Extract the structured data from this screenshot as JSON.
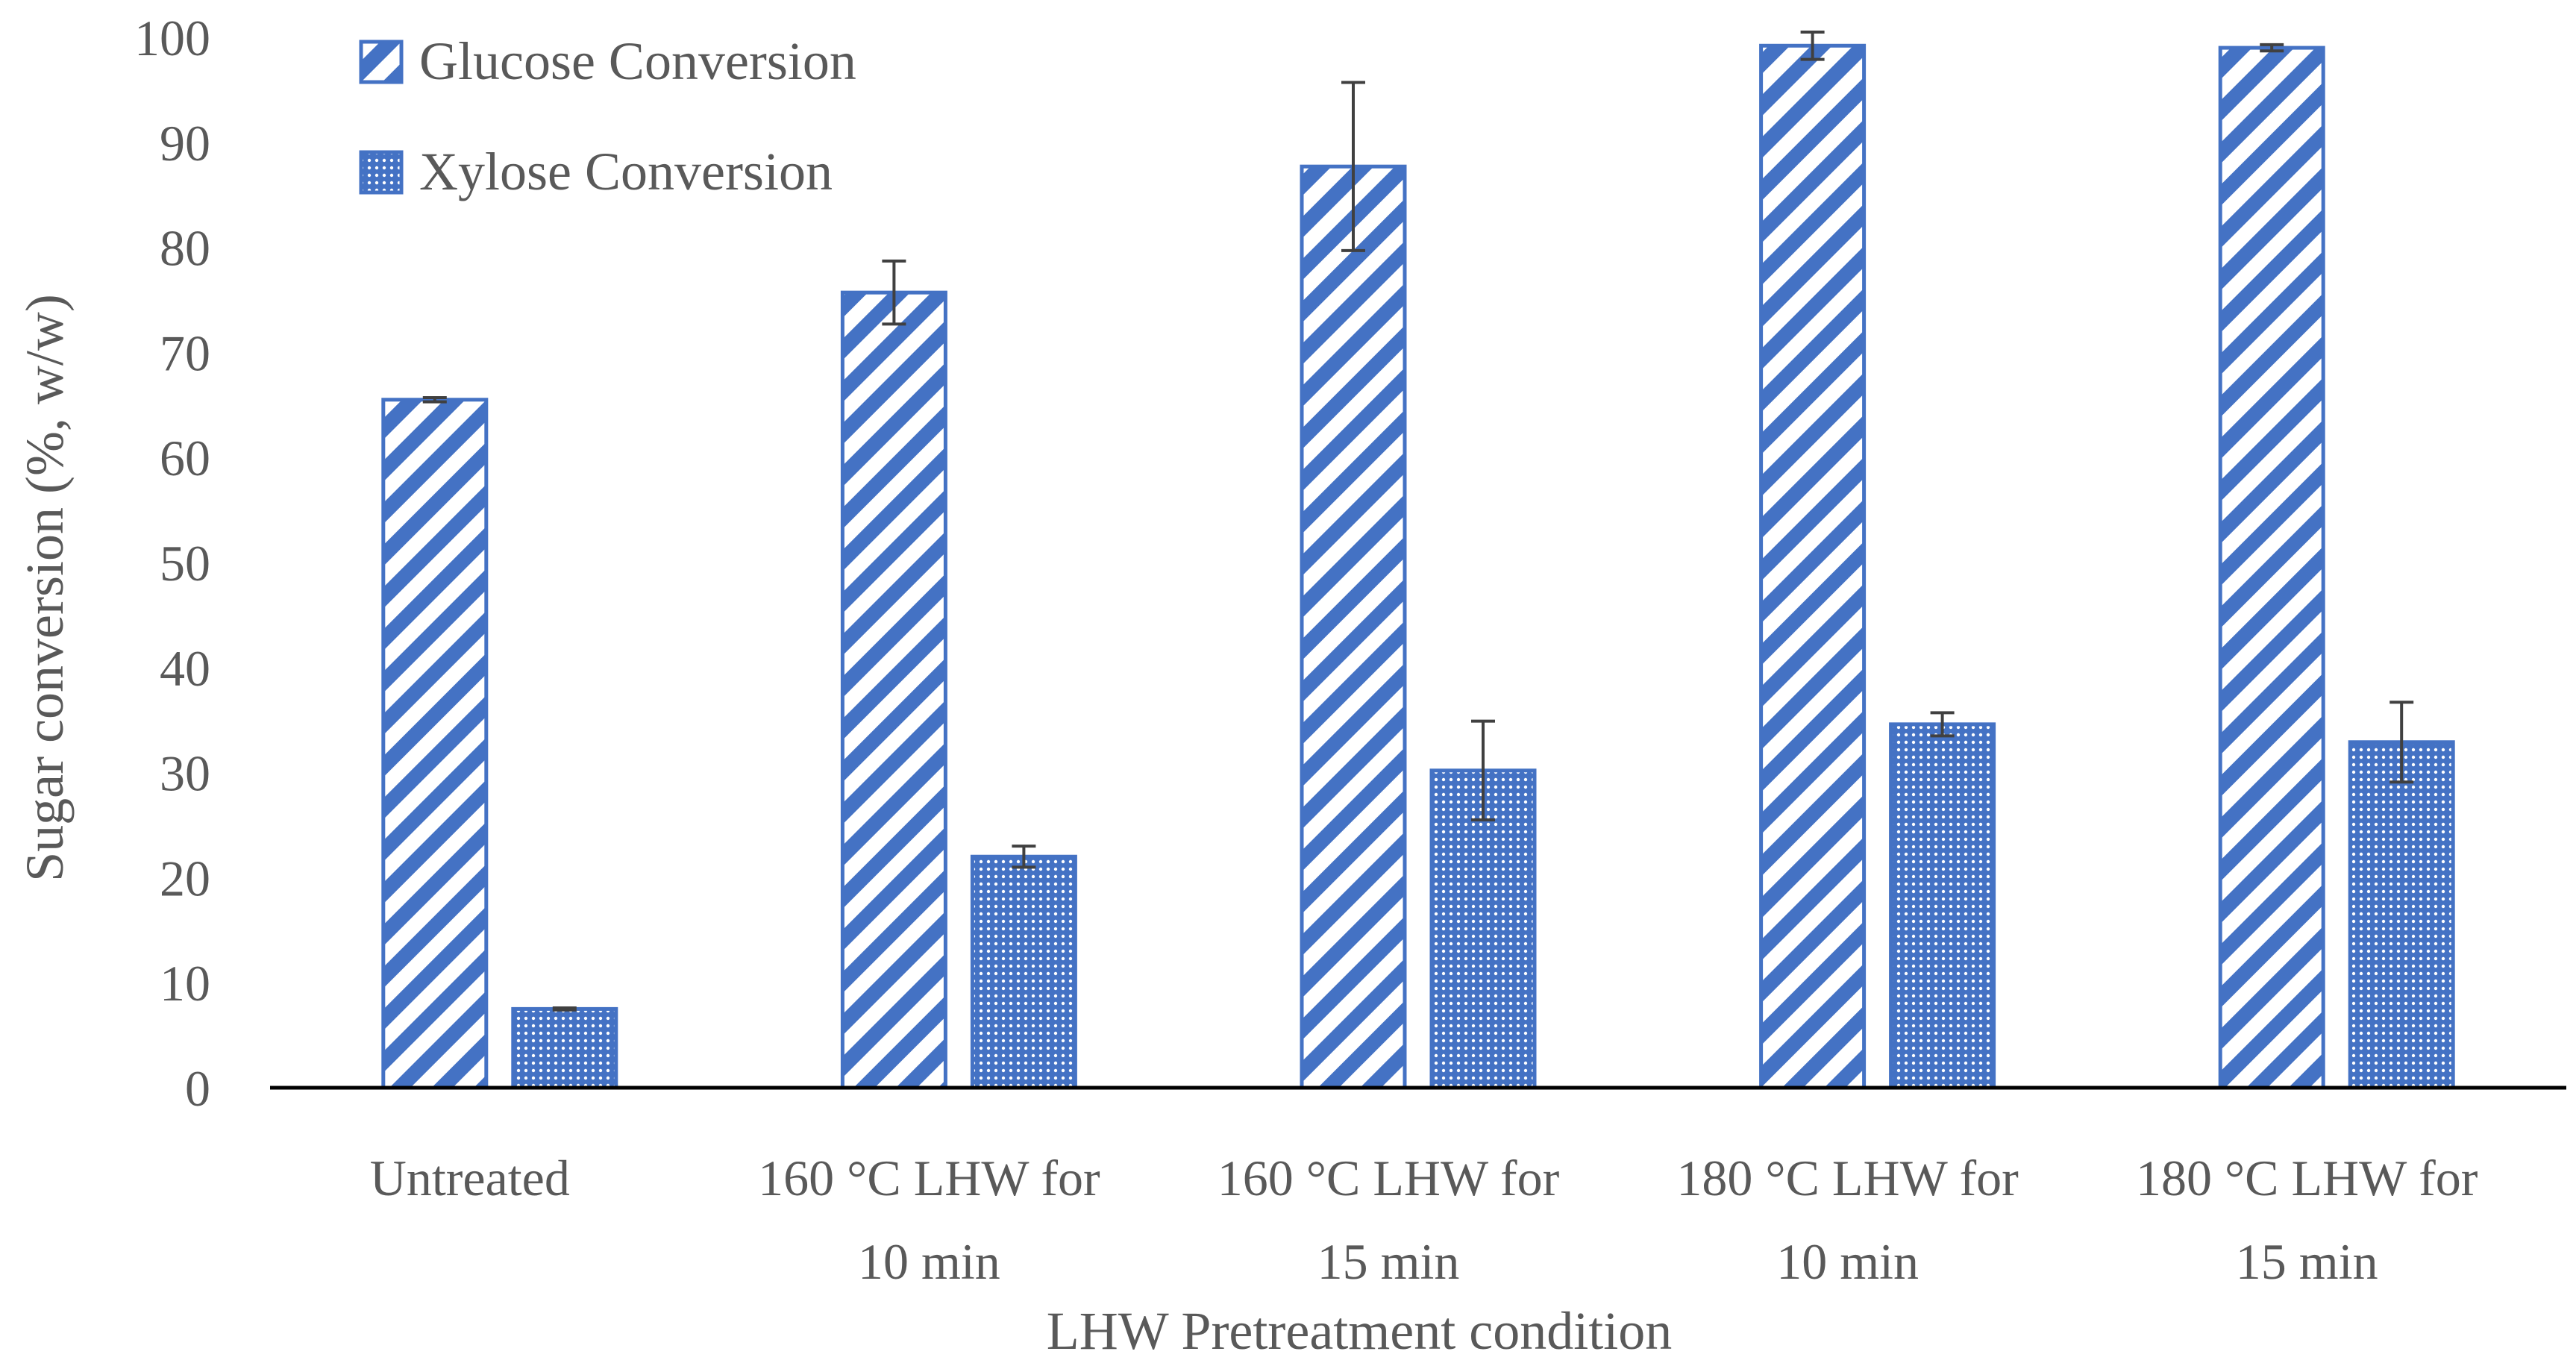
{
  "chart_data": {
    "type": "bar",
    "title": "",
    "xlabel": "LHW Pretreatment condition",
    "ylabel": "Sugar conversion (%, w/w)",
    "ylim": [
      0,
      100
    ],
    "yticks": [
      "0",
      "10",
      "20",
      "30",
      "40",
      "50",
      "60",
      "70",
      "80",
      "90",
      "100"
    ],
    "categories": [
      [
        "Untreated"
      ],
      [
        "160 °C LHW for",
        "10 min"
      ],
      [
        "160 °C LHW for",
        "15 min"
      ],
      [
        "180 °C LHW for",
        "10 min"
      ],
      [
        "180 °C LHW for",
        "15 min"
      ]
    ],
    "series": [
      {
        "name": "Glucose Conversion",
        "pattern": "diagonal-stripes",
        "values": [
          65.5,
          75.7,
          87.7,
          99.2,
          99.0
        ],
        "errors": [
          0.2,
          3.0,
          8.0,
          1.3,
          0.3
        ]
      },
      {
        "name": "Xylose Conversion",
        "pattern": "dots",
        "values": [
          7.5,
          22.0,
          30.2,
          34.6,
          32.9
        ],
        "errors": [
          0.1,
          1.0,
          4.7,
          1.1,
          3.8
        ]
      }
    ],
    "legend_position": "top-left",
    "grid": false,
    "colors": {
      "bar": "#4472c4",
      "axis": "#000000",
      "text": "#595959",
      "error_bar": "#404040"
    }
  }
}
